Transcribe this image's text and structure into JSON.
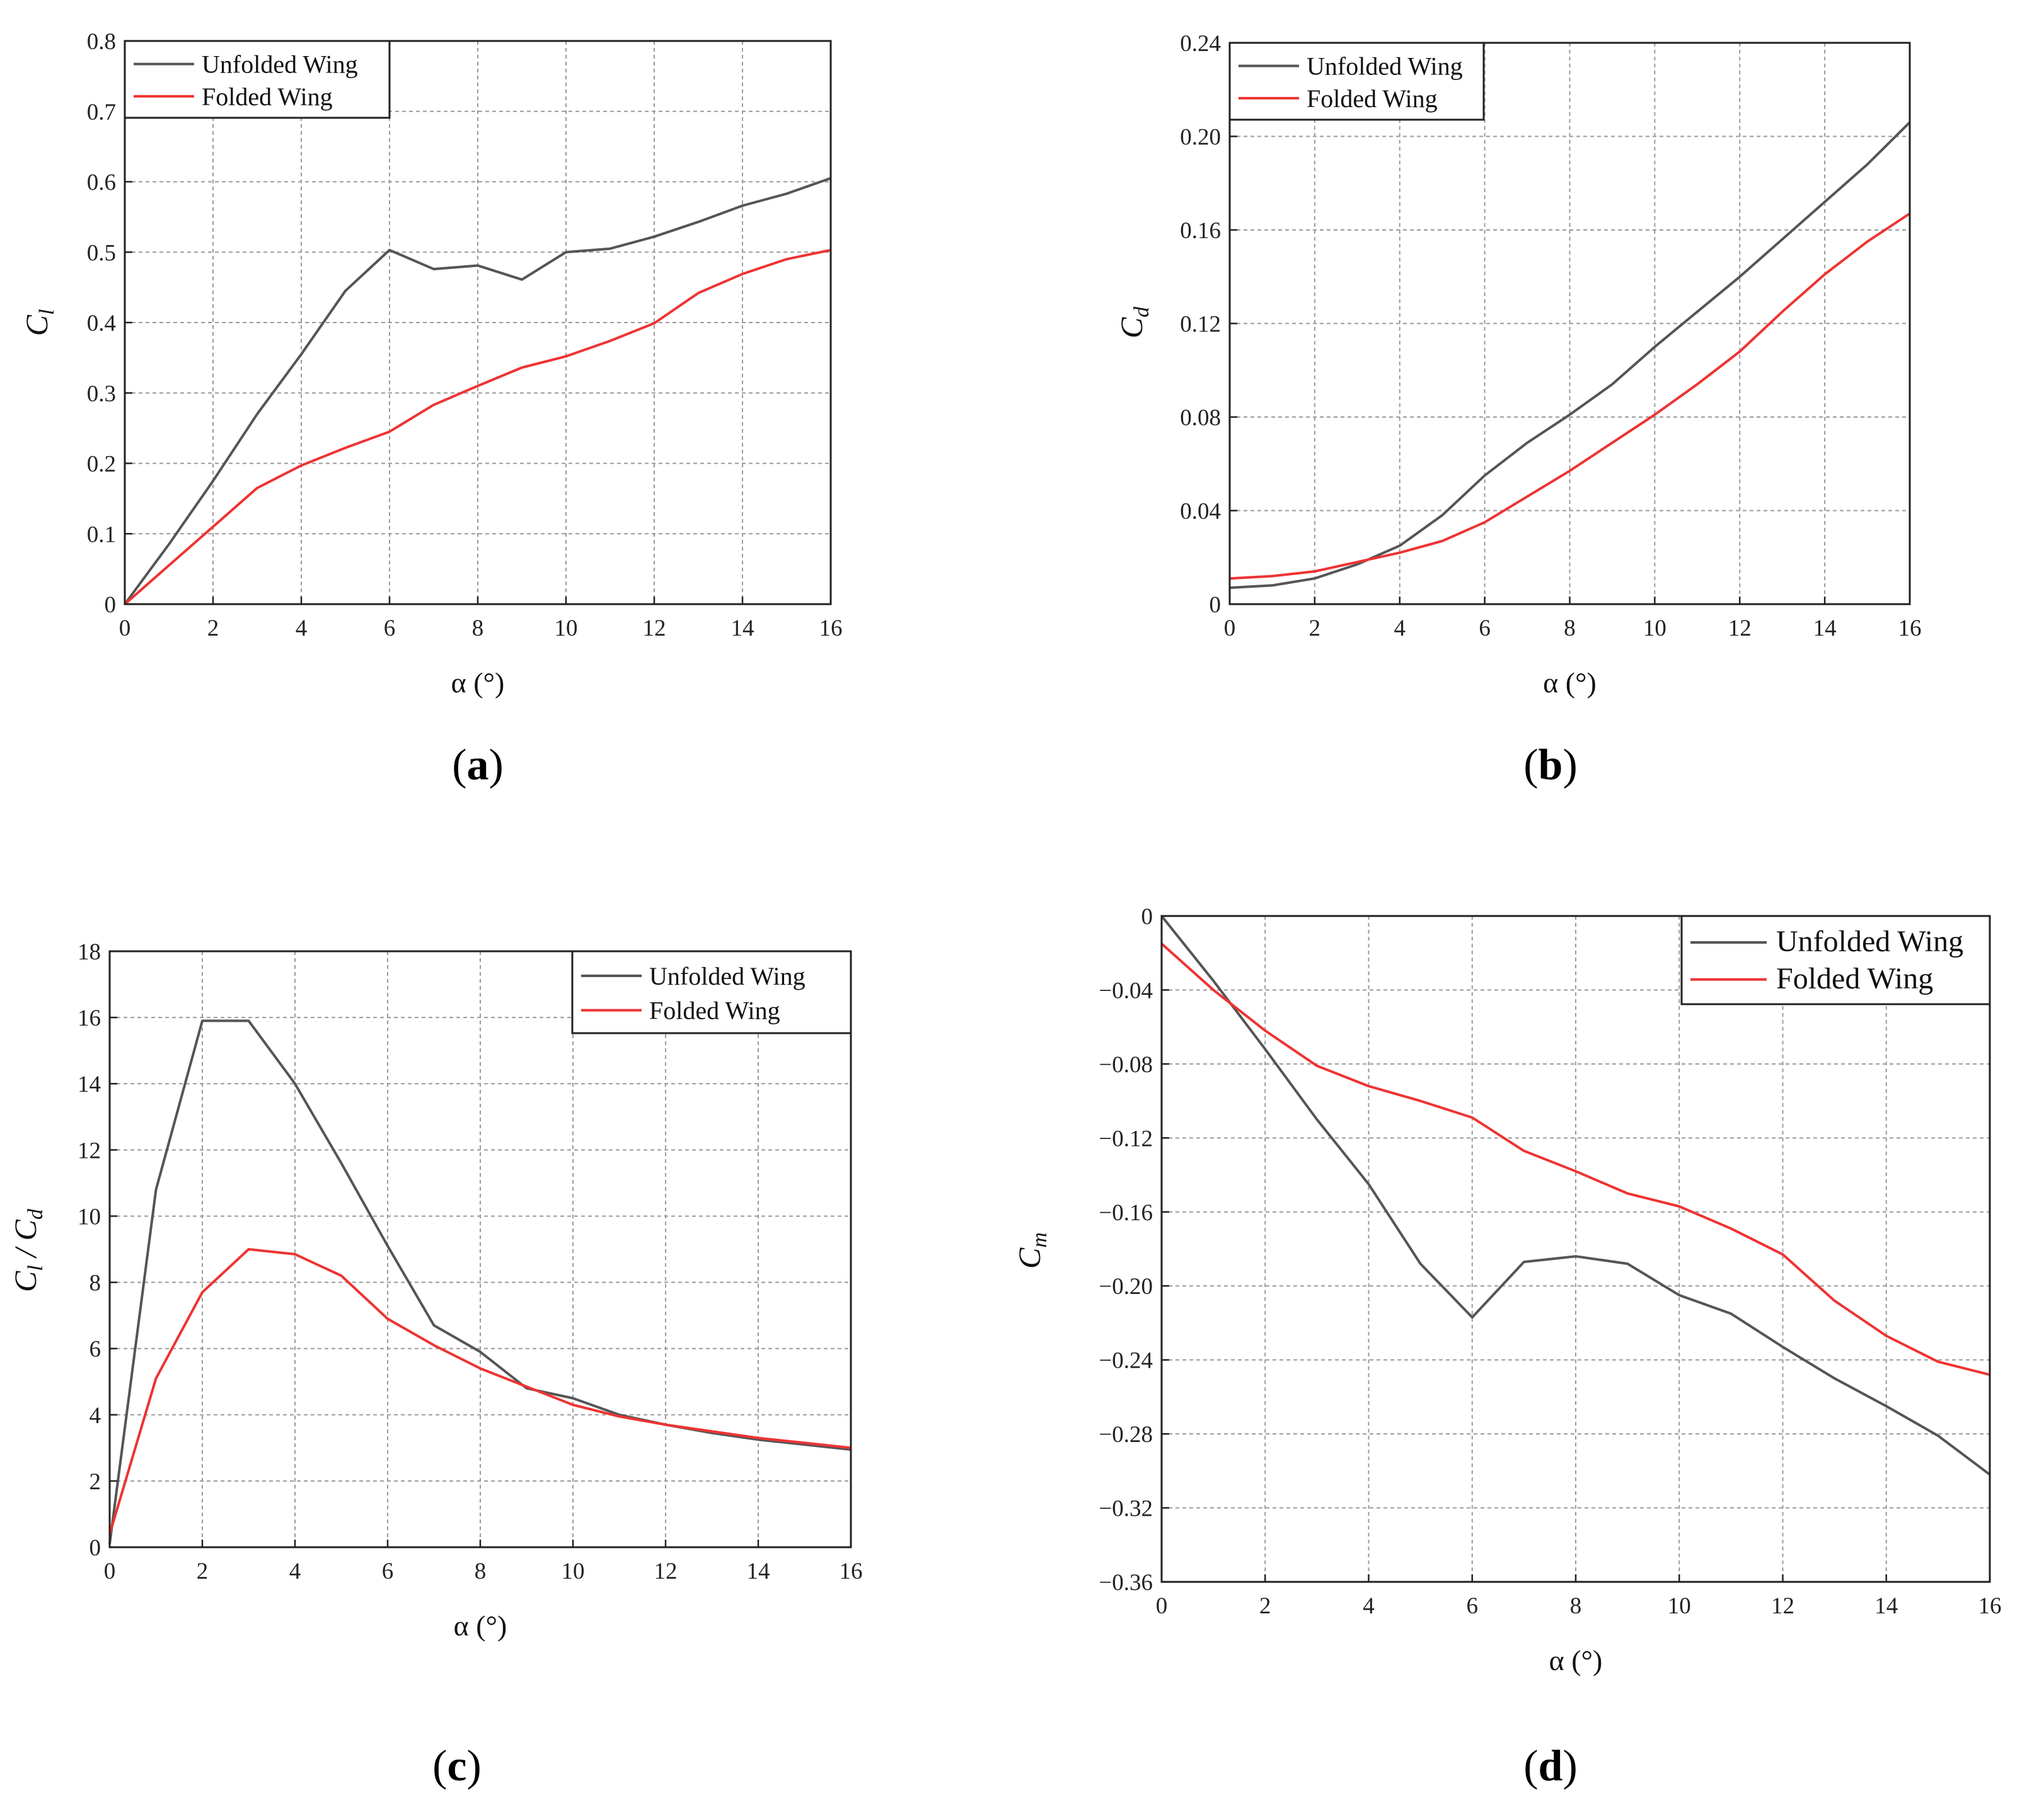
{
  "chart_data": [
    {
      "type": "line",
      "panel_label": "a",
      "xlabel": "α (°)",
      "ylabel": "C_l",
      "ylabel_main": "C",
      "ylabel_sub": "l",
      "xlim": [
        0,
        16
      ],
      "ylim": [
        0,
        0.8
      ],
      "xticks": [
        "0",
        "2",
        "4",
        "6",
        "8",
        "10",
        "12",
        "14",
        "16"
      ],
      "yticks": [
        "0",
        "0.1",
        "0.2",
        "0.3",
        "0.4",
        "0.5",
        "0.6",
        "0.7",
        "0.8"
      ],
      "grid": true,
      "legend_position": "top-left",
      "x": [
        0,
        1,
        2,
        3,
        4,
        5,
        6,
        7,
        8,
        9,
        10,
        11,
        12,
        13,
        14,
        15,
        16
      ],
      "series": [
        {
          "name": "Unfolded Wing",
          "color": "#555555",
          "values": [
            0,
            0.085,
            0.175,
            0.27,
            0.355,
            0.445,
            0.503,
            0.476,
            0.481,
            0.461,
            0.5,
            0.505,
            0.522,
            0.543,
            0.566,
            0.583,
            0.605
          ]
        },
        {
          "name": "Folded Wing",
          "color": "#ee3333",
          "values": [
            0,
            0.055,
            0.11,
            0.165,
            0.197,
            0.222,
            0.245,
            0.283,
            0.31,
            0.336,
            0.352,
            0.374,
            0.399,
            0.442,
            0.469,
            0.49,
            0.503
          ]
        }
      ]
    },
    {
      "type": "line",
      "panel_label": "b",
      "xlabel": "α (°)",
      "ylabel": "C_d",
      "ylabel_main": "C",
      "ylabel_sub": "d",
      "xlim": [
        0,
        16
      ],
      "ylim": [
        0,
        0.24
      ],
      "xticks": [
        "0",
        "2",
        "4",
        "6",
        "8",
        "10",
        "12",
        "14",
        "16"
      ],
      "yticks": [
        "0",
        "0.04",
        "0.08",
        "0.12",
        "0.16",
        "0.20",
        "0.24"
      ],
      "grid": true,
      "legend_position": "top-left",
      "x": [
        0,
        1,
        2,
        3,
        4,
        5,
        6,
        7,
        8,
        9,
        10,
        11,
        12,
        13,
        14,
        15,
        16
      ],
      "series": [
        {
          "name": "Unfolded Wing",
          "color": "#555555",
          "values": [
            0.007,
            0.008,
            0.011,
            0.017,
            0.025,
            0.038,
            0.055,
            0.069,
            0.081,
            0.094,
            0.11,
            0.125,
            0.14,
            0.156,
            0.172,
            0.188,
            0.206
          ]
        },
        {
          "name": "Folded Wing",
          "color": "#ee3333",
          "values": [
            0.011,
            0.012,
            0.014,
            0.018,
            0.022,
            0.027,
            0.035,
            0.046,
            0.057,
            0.069,
            0.081,
            0.094,
            0.108,
            0.125,
            0.141,
            0.155,
            0.167
          ]
        }
      ]
    },
    {
      "type": "line",
      "panel_label": "c",
      "xlabel": "α (°)",
      "ylabel": "C_l / C_d",
      "ylabel_main": "C",
      "ylabel_sub": "l",
      "ylabel_mid": " / C",
      "ylabel_sub2": "d",
      "xlim": [
        0,
        16
      ],
      "ylim": [
        0,
        18
      ],
      "xticks": [
        "0",
        "2",
        "4",
        "6",
        "8",
        "10",
        "12",
        "14",
        "16"
      ],
      "yticks": [
        "0",
        "2",
        "4",
        "6",
        "8",
        "10",
        "12",
        "14",
        "16",
        "18"
      ],
      "grid": true,
      "legend_position": "top-right",
      "x": [
        0,
        1,
        2,
        3,
        4,
        5,
        6,
        7,
        8,
        9,
        10,
        11,
        12,
        13,
        14,
        15,
        16
      ],
      "series": [
        {
          "name": "Unfolded Wing",
          "color": "#555555",
          "values": [
            0.1,
            10.8,
            15.9,
            15.9,
            14.0,
            11.6,
            9.1,
            6.7,
            5.9,
            4.8,
            4.5,
            4.0,
            3.7,
            3.45,
            3.25,
            3.1,
            2.95
          ]
        },
        {
          "name": "Folded Wing",
          "color": "#ee3333",
          "values": [
            0.4,
            5.1,
            7.7,
            9.0,
            8.85,
            8.2,
            6.9,
            6.1,
            5.4,
            4.85,
            4.3,
            3.95,
            3.7,
            3.5,
            3.3,
            3.15,
            3.0
          ]
        }
      ]
    },
    {
      "type": "line",
      "panel_label": "d",
      "xlabel": "α (°)",
      "ylabel": "C_m",
      "ylabel_main": "C",
      "ylabel_sub": "m",
      "xlim": [
        0,
        16
      ],
      "ylim": [
        -0.36,
        0
      ],
      "xticks": [
        "0",
        "2",
        "4",
        "6",
        "8",
        "10",
        "12",
        "14",
        "16"
      ],
      "yticks": [
        "0",
        "−0.04",
        "−0.08",
        "−0.12",
        "−0.16",
        "−0.20",
        "−0.24",
        "−0.28",
        "−0.32",
        "−0.36"
      ],
      "grid": true,
      "legend_position": "top-right",
      "x": [
        0,
        1,
        2,
        3,
        4,
        5,
        6,
        7,
        8,
        9,
        10,
        11,
        12,
        13,
        14,
        15,
        16
      ],
      "series": [
        {
          "name": "Unfolded Wing",
          "color": "#555555",
          "values": [
            0.0,
            -0.035,
            -0.072,
            -0.11,
            -0.145,
            -0.188,
            -0.217,
            -0.187,
            -0.184,
            -0.188,
            -0.205,
            -0.215,
            -0.233,
            -0.25,
            -0.265,
            -0.281,
            -0.302
          ]
        },
        {
          "name": "Folded Wing",
          "color": "#ee3333",
          "values": [
            -0.015,
            -0.04,
            -0.062,
            -0.081,
            -0.092,
            -0.1,
            -0.109,
            -0.127,
            -0.138,
            -0.15,
            -0.157,
            -0.169,
            -0.183,
            -0.208,
            -0.227,
            -0.241,
            -0.248
          ]
        }
      ]
    }
  ]
}
